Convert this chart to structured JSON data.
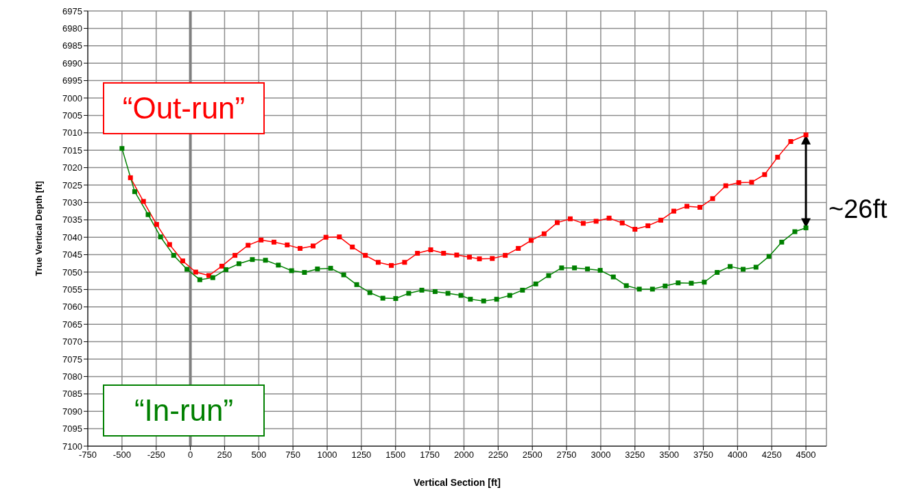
{
  "chart_data": {
    "type": "line",
    "xlabel": "Vertical Section [ft]",
    "ylabel": "True Vertical Depth [ft]",
    "xlim": [
      -750,
      4650
    ],
    "xticks": [
      -750,
      -500,
      -250,
      0,
      250,
      500,
      750,
      1000,
      1250,
      1500,
      1750,
      2000,
      2250,
      2500,
      2750,
      3000,
      3250,
      3500,
      3750,
      4000,
      4250,
      4500
    ],
    "ylim": [
      7100,
      6975
    ],
    "yticks": [
      6975,
      6980,
      6985,
      6990,
      6995,
      7000,
      7005,
      7010,
      7015,
      7020,
      7025,
      7030,
      7035,
      7040,
      7045,
      7050,
      7055,
      7060,
      7065,
      7070,
      7075,
      7080,
      7085,
      7090,
      7095,
      7100
    ],
    "grid": true,
    "marker": "square",
    "line_style": "solid",
    "ref_lines": [
      {
        "axis": "x",
        "value": 0,
        "color": "#808080"
      }
    ],
    "annotations": [
      "~26ft"
    ],
    "series": [
      {
        "name": "“Out-run”",
        "color": "#ff0000",
        "x": [
          -438,
          -343,
          -247,
          -152,
          -56,
          39,
          135,
          230,
          326,
          422,
          517,
          611,
          708,
          802,
          897,
          991,
          1089,
          1184,
          1279,
          1373,
          1469,
          1566,
          1660,
          1757,
          1851,
          1947,
          2040,
          2113,
          2207,
          2302,
          2397,
          2491,
          2586,
          2682,
          2777,
          2872,
          2966,
          3061,
          3157,
          3250,
          3345,
          3439,
          3534,
          3630,
          3725,
          3818,
          3914,
          4009,
          4103,
          4198,
          4293,
          4389,
          4500
        ],
        "values": [
          7022.9,
          7029.7,
          7036.3,
          7042.1,
          7046.8,
          7050.0,
          7051.0,
          7048.3,
          7045.2,
          7042.3,
          7040.8,
          7041.4,
          7042.2,
          7043.2,
          7042.5,
          7040.0,
          7039.9,
          7042.8,
          7045.2,
          7047.2,
          7048.1,
          7047.2,
          7044.6,
          7043.6,
          7044.6,
          7045.1,
          7045.7,
          7046.2,
          7046.1,
          7045.2,
          7043.2,
          7040.9,
          7039.0,
          7035.8,
          7034.7,
          7036.0,
          7035.4,
          7034.5,
          7035.9,
          7037.7,
          7036.7,
          7035.1,
          7032.5,
          7031.1,
          7031.4,
          7028.9,
          7025.2,
          7024.3,
          7024.2,
          7022.0,
          7017.0,
          7012.5,
          7010.6
        ]
      },
      {
        "name": "“In-run”",
        "color": "#008000",
        "x": [
          -500,
          -407,
          -309,
          -218,
          -122,
          -25,
          69,
          164,
          260,
          355,
          453,
          549,
          643,
          740,
          834,
          929,
          1025,
          1121,
          1216,
          1312,
          1407,
          1501,
          1596,
          1692,
          1789,
          1883,
          1978,
          2047,
          2144,
          2239,
          2335,
          2428,
          2525,
          2619,
          2714,
          2808,
          2903,
          2996,
          3092,
          3187,
          3282,
          3378,
          3471,
          3566,
          3662,
          3757,
          3851,
          3946,
          4041,
          4135,
          4230,
          4323,
          4419,
          4500
        ],
        "values": [
          7014.5,
          7026.9,
          7033.5,
          7039.9,
          7045.2,
          7049.2,
          7052.2,
          7051.6,
          7049.3,
          7047.6,
          7046.4,
          7046.6,
          7048.0,
          7049.6,
          7050.1,
          7049.1,
          7048.9,
          7050.8,
          7053.6,
          7055.9,
          7057.5,
          7057.6,
          7056.1,
          7055.2,
          7055.6,
          7056.1,
          7056.7,
          7057.8,
          7058.3,
          7057.8,
          7056.7,
          7055.2,
          7053.4,
          7051.0,
          7048.8,
          7048.8,
          7049.1,
          7049.5,
          7051.4,
          7053.9,
          7054.9,
          7054.9,
          7054.0,
          7053.1,
          7053.2,
          7052.9,
          7050.1,
          7048.4,
          7049.2,
          7048.6,
          7045.5,
          7041.4,
          7038.4,
          7037.3
        ]
      }
    ]
  }
}
